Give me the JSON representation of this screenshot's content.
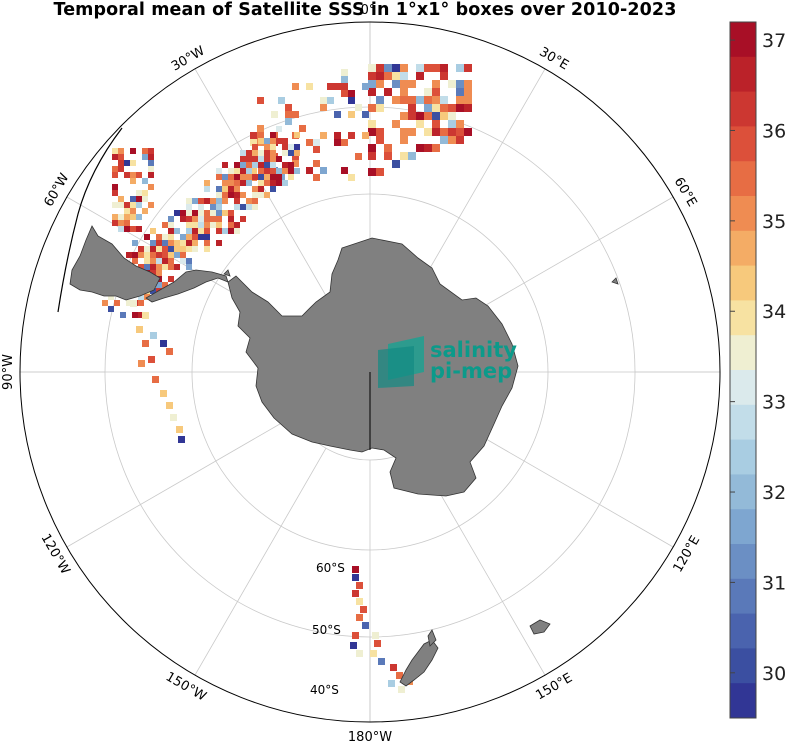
{
  "title": "Temporal mean of Satellite SSS in 1°x1° boxes over 2010-2023",
  "map": {
    "projection": "south-polar-stereographic",
    "longitude_labels": [
      "0°",
      "30°E",
      "60°E",
      "90°E",
      "120°E",
      "150°E",
      "180°W",
      "150°W",
      "120°W",
      "90°W",
      "60°W",
      "30°W"
    ],
    "latitude_labels": [
      "60°S",
      "50°S",
      "40°S"
    ],
    "land_color": "#808080",
    "logo": {
      "line1": "salinity",
      "line2": "pi-mep"
    }
  },
  "colorbar": {
    "ticks": [
      "37",
      "36",
      "35",
      "34",
      "33",
      "32",
      "31",
      "30"
    ],
    "range": [
      29.5,
      37.2
    ],
    "colors": [
      "#313695",
      "#3b4fa1",
      "#4a63ae",
      "#5a79b9",
      "#6b8fc4",
      "#7ea6d0",
      "#93bad8",
      "#a9cde2",
      "#c2dde9",
      "#dbeaec",
      "#efefd2",
      "#f7e2a2",
      "#f7c97c",
      "#f4ac65",
      "#ef8c52",
      "#e76d44",
      "#dc503a",
      "#cc3731",
      "#bb2229",
      "#a80f26"
    ]
  }
}
